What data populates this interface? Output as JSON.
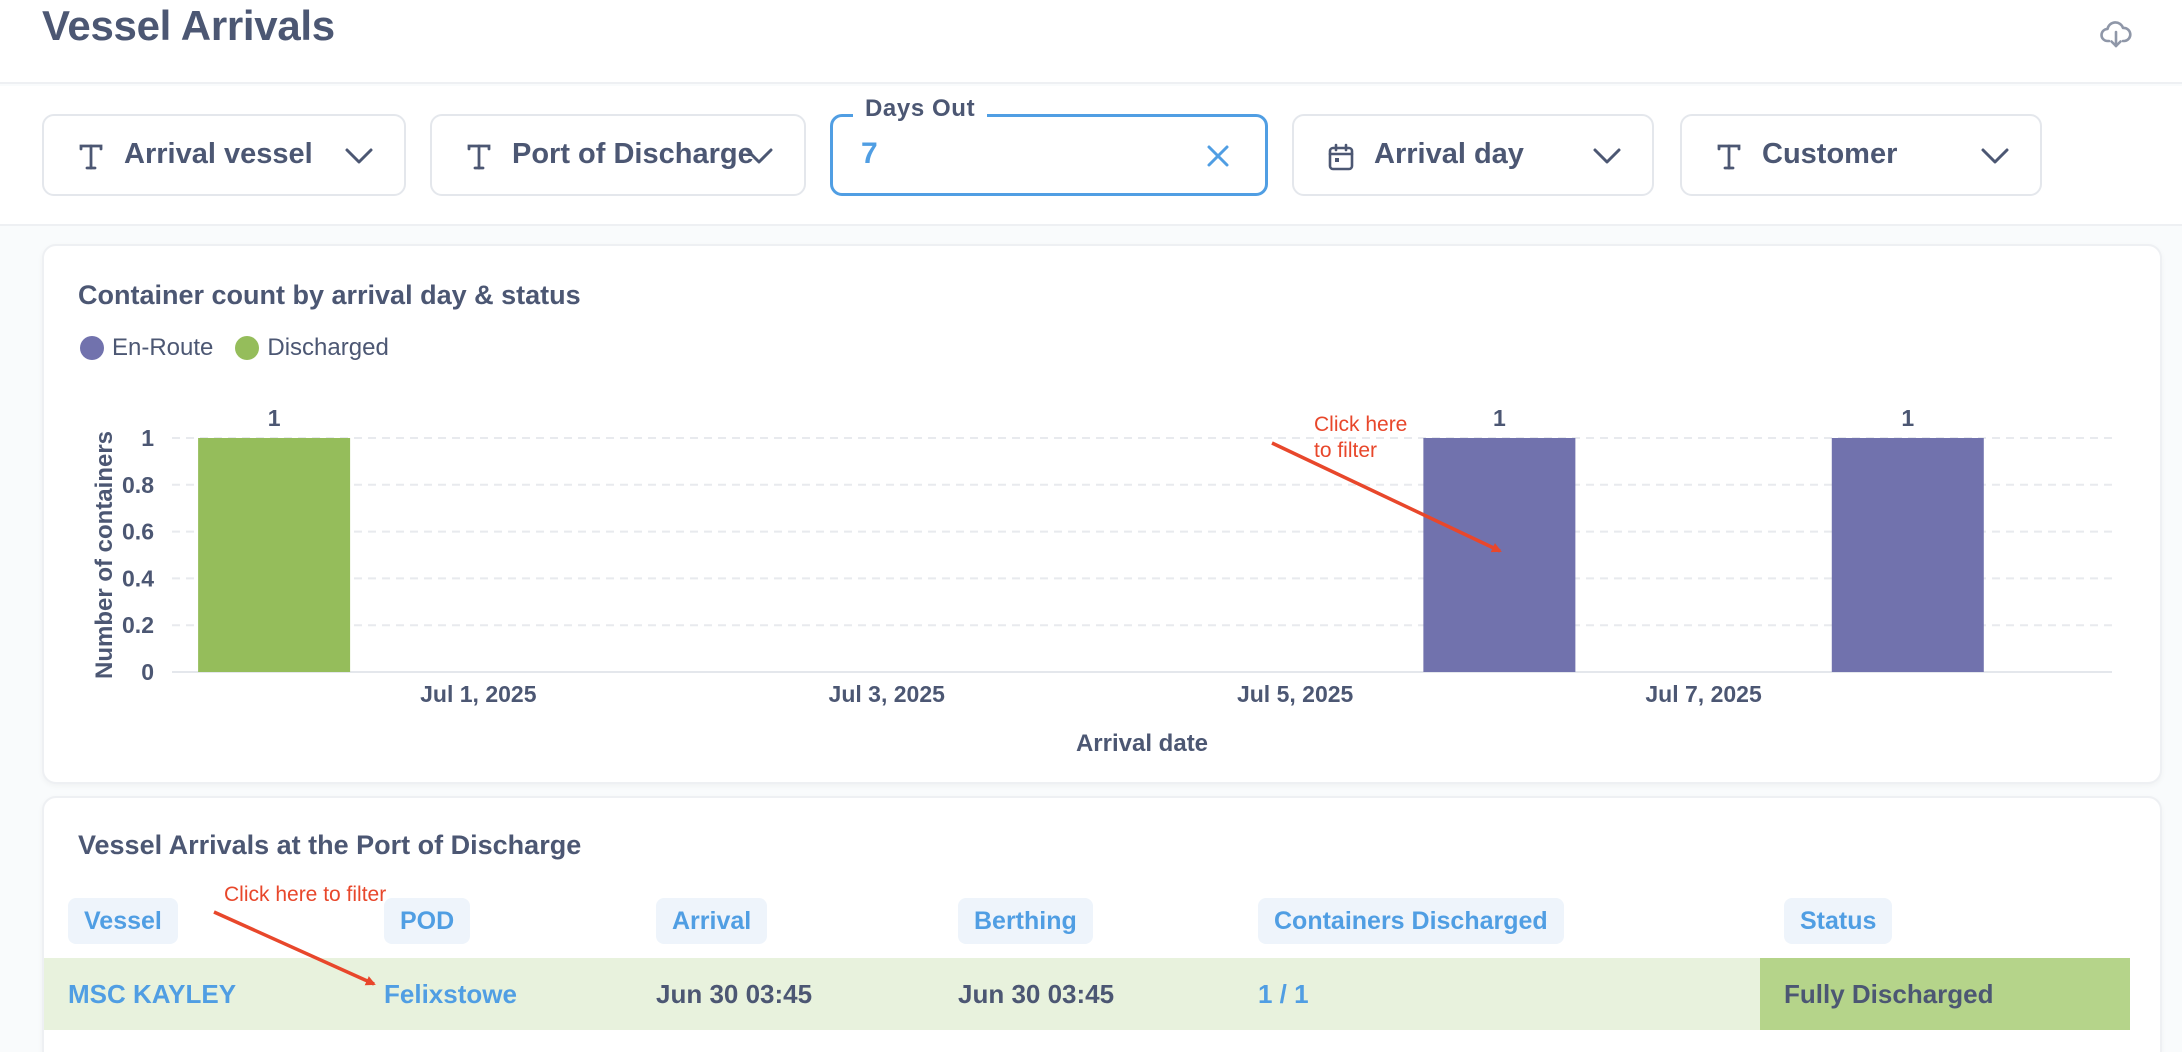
{
  "header": {
    "title": "Vessel Arrivals"
  },
  "filters": [
    {
      "label": "Arrival vessel",
      "icon": "text-icon"
    },
    {
      "label": "Port of Discharge",
      "icon": "text-icon"
    },
    {
      "label": "Days Out",
      "value": "7",
      "icon": "close-icon"
    },
    {
      "label": "Arrival day",
      "icon": "calendar-icon"
    },
    {
      "label": "Customer",
      "icon": "text-icon"
    }
  ],
  "chart_card": {
    "title": "Container count by arrival day & status",
    "annotation_line1": "Click here",
    "annotation_line2": "to filter"
  },
  "chart_data": {
    "type": "bar",
    "title": "Container count by arrival day & status",
    "xlabel": "Arrival date",
    "ylabel": "Number of containers",
    "ylim": [
      0,
      1
    ],
    "yticks": [
      "0",
      "0.2",
      "0.4",
      "0.6",
      "0.8",
      "1"
    ],
    "xticks": [
      "Jul 1, 2025",
      "Jul 3, 2025",
      "Jul 5, 2025",
      "Jul 7, 2025"
    ],
    "legend_position": "top-left",
    "grid": true,
    "series": [
      {
        "name": "En-Route",
        "color": "#7172ad"
      },
      {
        "name": "Discharged",
        "color": "#95bd5b"
      }
    ],
    "bars": [
      {
        "date": "2025-06-30",
        "series": "Discharged",
        "value": 1,
        "label": "1"
      },
      {
        "date": "2025-07-06",
        "series": "En-Route",
        "value": 1,
        "label": "1"
      },
      {
        "date": "2025-07-08",
        "series": "En-Route",
        "value": 1,
        "label": "1"
      }
    ]
  },
  "table_card": {
    "title": "Vessel Arrivals at the Port of Discharge",
    "annotation": "Click here to filter",
    "columns": [
      "Vessel",
      "POD",
      "Arrival",
      "Berthing",
      "Containers Discharged",
      "Status"
    ],
    "rows": [
      {
        "vessel": "MSC KAYLEY",
        "pod": "Felixstowe",
        "arrival": "Jun 30 03:45",
        "berthing": "Jun 30 03:45",
        "containers_discharged": "1 / 1",
        "status": "Fully Discharged"
      }
    ]
  },
  "colors": {
    "accent": "#509ee3",
    "en_route": "#7172ad",
    "discharged": "#95bd5b",
    "annotation": "#e8472b",
    "status_fill": "#b5d48a",
    "row_fill": "#e8f2dd"
  }
}
